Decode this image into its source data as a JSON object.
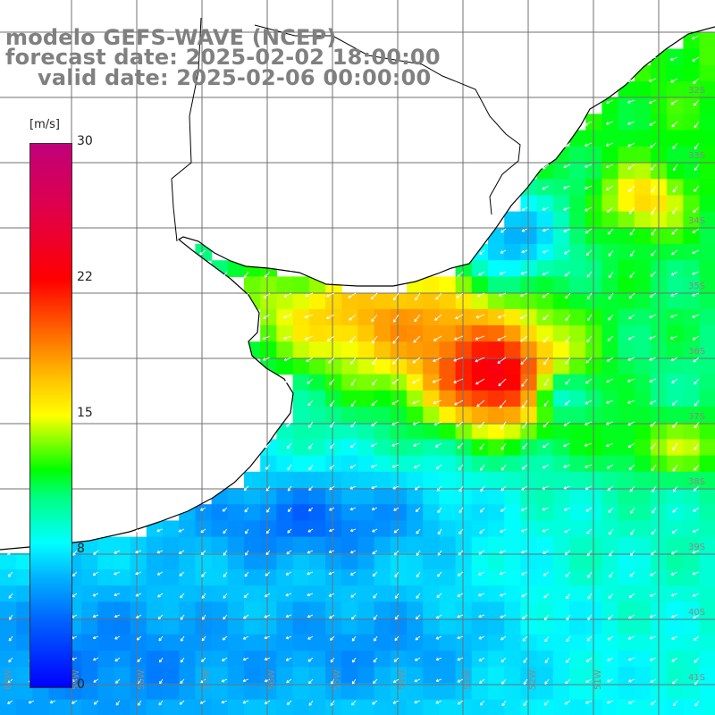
{
  "titles": {
    "model": "modelo GEFS-WAVE (NCEP)",
    "forecast": "forecast date: 2025-02-02 18:00:00",
    "valid": "valid date: 2025-02-06 00:00:00"
  },
  "legend": {
    "unit": "[m/s]",
    "ticks": [
      "30",
      "22",
      "15",
      "8",
      "0"
    ],
    "min": 0,
    "max": 30
  },
  "map": {
    "variable": "wind speed",
    "region": "South Atlantic, off Rio de la Plata",
    "lat_labels": [
      "32S",
      "33S",
      "34S",
      "35S",
      "36S",
      "37S",
      "38S",
      "39S",
      "40S",
      "41S"
    ],
    "lon_labels": [
      "60W",
      "59W",
      "58W",
      "57W",
      "56W",
      "55W",
      "54W",
      "53W",
      "52W",
      "51W"
    ],
    "land_color": "#ffffff",
    "grid_color": "#707070",
    "coast_color": "#000000",
    "arrow_color": "#ffffff",
    "prevailing_wind": "northeasterly, blowing toward southwest"
  }
}
